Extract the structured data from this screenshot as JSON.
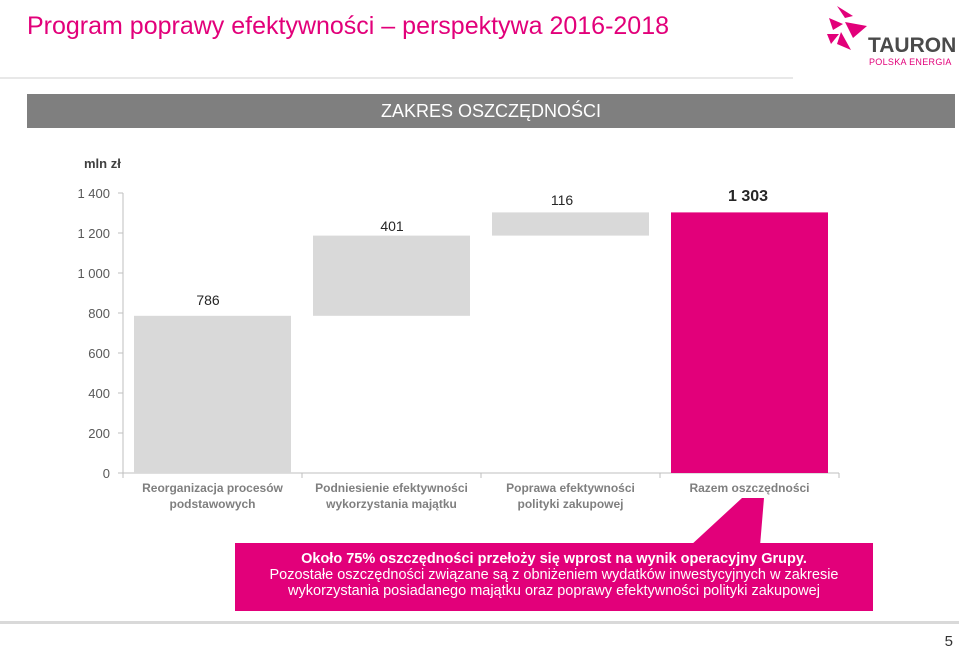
{
  "header": {
    "title": "Program poprawy efektywności – perspektywa 2016-2018"
  },
  "logo": {
    "name": "TAURON",
    "subtitle": "POLSKA ENERGIA"
  },
  "banner": {
    "text": "ZAKRES OSZCZĘDNOŚCI"
  },
  "chart_data": {
    "type": "bar",
    "subtype": "waterfall",
    "ylabel": "mln zł",
    "ylim": [
      0,
      1400
    ],
    "ytick_labels": [
      "0",
      "200",
      "400",
      "600",
      "800",
      "1 000",
      "1 200",
      "1 400"
    ],
    "yticks": [
      0,
      200,
      400,
      600,
      800,
      1000,
      1200,
      1400
    ],
    "categories": [
      [
        "Reorganizacja procesów",
        "podstawowych"
      ],
      [
        "Podniesienie efektywności",
        "wykorzystania majątku"
      ],
      [
        "Poprawa efektywności",
        "polityki zakupowej"
      ],
      [
        "Razem oszczędności"
      ]
    ],
    "values": [
      786,
      401,
      116,
      1303
    ],
    "bases": [
      0,
      786,
      1187,
      0
    ],
    "value_labels": [
      "786",
      "401",
      "116",
      "1 303"
    ],
    "bar_colors": [
      "#d9d9d9",
      "#d9d9d9",
      "#d9d9d9",
      "#e2007a"
    ],
    "grid": false
  },
  "callout": {
    "line1": "Około 75% oszczędności  przełoży się wprost na wynik operacyjny Grupy.",
    "line2": "Pozostałe oszczędności związane są z obniżeniem wydatków inwestycyjnych w zakresie",
    "line3": "wykorzystania posiadanego majątku oraz poprawy efektywności polityki zakupowej"
  },
  "footer": {
    "page_number": "5"
  },
  "colors": {
    "accent": "#e2007a",
    "bar": "#d9d9d9",
    "banner": "#7f7f7f"
  }
}
